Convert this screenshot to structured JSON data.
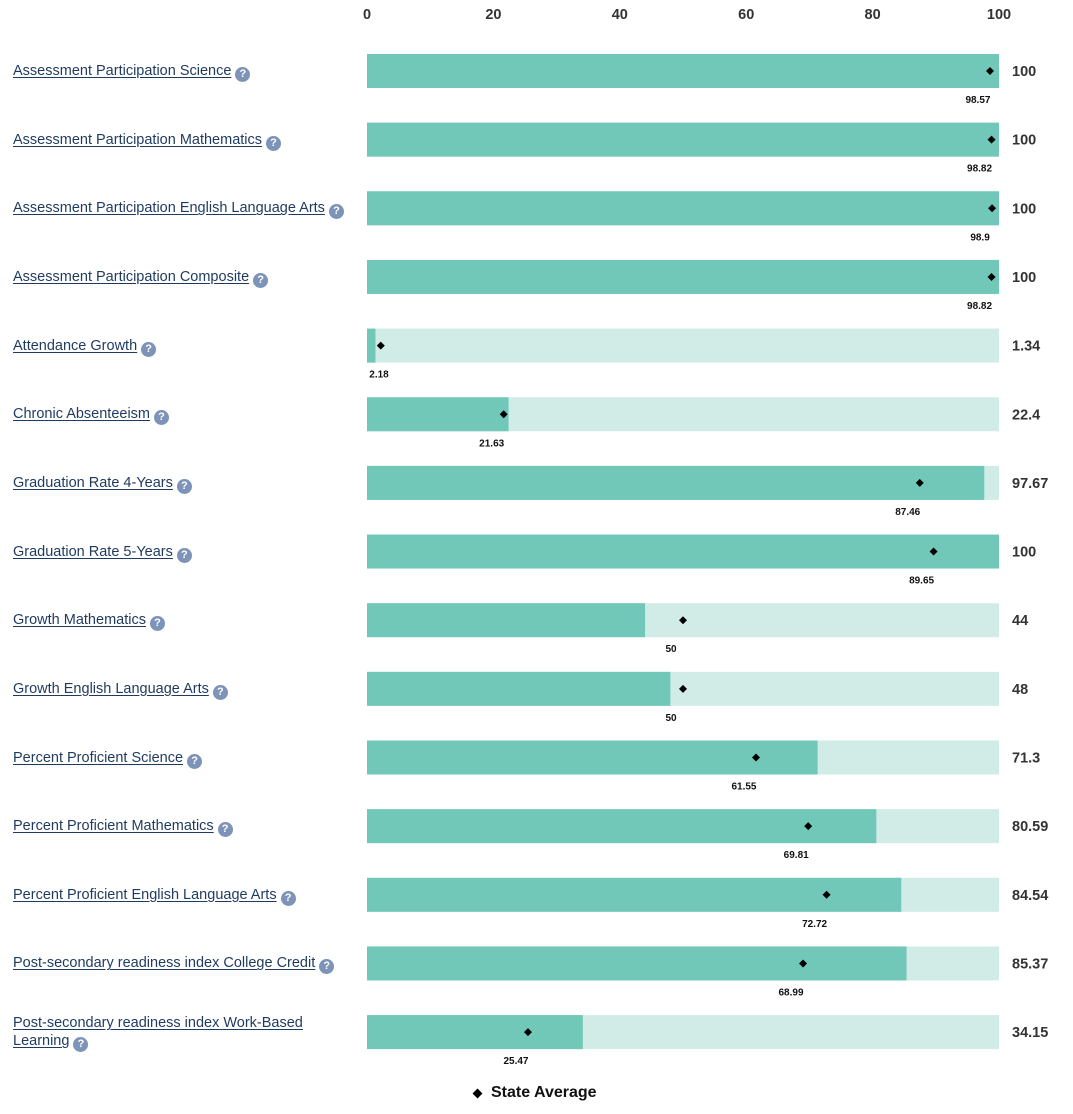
{
  "chart_data": {
    "type": "bar",
    "orientation": "horizontal",
    "xlim": [
      0,
      100
    ],
    "xticks": [
      "0",
      "20",
      "40",
      "60",
      "80",
      "100"
    ],
    "colors": {
      "value_bar": "#72c8b8",
      "track": "#d1ece6",
      "marker": "#000000"
    },
    "legend": {
      "label": "State Average",
      "position": "bottom-center"
    },
    "categories": [
      "Assessment Participation Science",
      "Assessment Participation Mathematics",
      "Assessment Participation English Language Arts",
      "Assessment Participation Composite",
      "Attendance Growth",
      "Chronic Absenteeism",
      "Graduation Rate 4-Years",
      "Graduation Rate 5-Years",
      "Growth Mathematics",
      "Growth English Language Arts",
      "Percent Proficient Science",
      "Percent Proficient Mathematics",
      "Percent Proficient English Language Arts",
      "Post-secondary readiness index College Credit",
      "Post-secondary readiness index Work-Based Learning"
    ],
    "values": [
      100,
      100,
      100,
      100,
      1.34,
      22.4,
      97.67,
      100,
      44,
      48,
      71.3,
      80.59,
      84.54,
      85.37,
      34.15
    ],
    "value_labels": [
      "100",
      "100",
      "100",
      "100",
      "1.34",
      "22.4",
      "97.67",
      "100",
      "44",
      "48",
      "71.3",
      "80.59",
      "84.54",
      "85.37",
      "34.15"
    ],
    "state_average": [
      98.57,
      98.82,
      98.9,
      98.82,
      2.18,
      21.63,
      87.46,
      89.65,
      50,
      50,
      61.55,
      69.81,
      72.72,
      68.99,
      25.47
    ],
    "state_average_labels": [
      "98.57",
      "98.82",
      "98.9",
      "98.82",
      "2.18",
      "21.63",
      "87.46",
      "89.65",
      "50",
      "50",
      "61.55",
      "69.81",
      "72.72",
      "68.99",
      "25.47"
    ]
  },
  "help_icon_glyph": "?"
}
